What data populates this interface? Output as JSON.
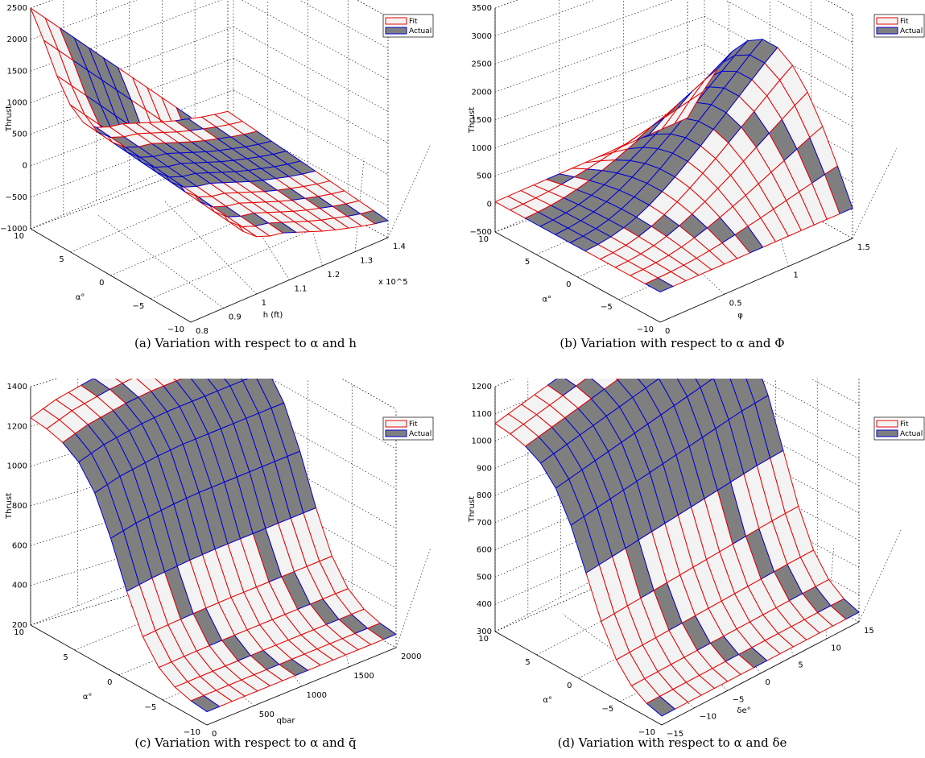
{
  "chart_data": [
    {
      "type": "surface",
      "zlabel": "Thrust",
      "xlabel": "h (ft)",
      "ylabel": "α°",
      "xscale_label": "x 10^5",
      "caption": "(a) Variation with respect to α and h",
      "legend": [
        "Fit",
        "Actual"
      ],
      "legend_position": "top-right",
      "x_ticks": [
        "0.8",
        "0.9",
        "1",
        "1.1",
        "1.2",
        "1.3",
        "1.4"
      ],
      "y_ticks": [
        "10",
        "5",
        "0",
        "−5",
        "−10"
      ],
      "z_ticks": [
        "2500",
        "2000",
        "1500",
        "1000",
        "500",
        "0",
        "−500",
        "−1000"
      ],
      "xlim": [
        0.8,
        1.4
      ],
      "ylim": [
        -10,
        10
      ],
      "zlim": [
        -1000,
        2500
      ],
      "profile": [
        2500,
        1900,
        1250,
        700,
        330,
        160,
        80,
        40,
        -40,
        -120,
        -200,
        -270,
        -330,
        -390,
        -440,
        -480
      ],
      "grid_x": 16,
      "grid_y": 12,
      "colors": {
        "fit": "#e60000",
        "actual": "#0000d0",
        "fit_fill": "#f3f3f3",
        "actual_fill": "#7f7f80"
      }
    },
    {
      "type": "surface",
      "zlabel": "Thrust",
      "xlabel": "φ",
      "ylabel": "α°",
      "caption": "(b) Variation with respect to α and Φ",
      "legend": [
        "Fit",
        "Actual"
      ],
      "legend_position": "top-right",
      "x_ticks": [
        "0",
        "0.5",
        "1",
        "1.5"
      ],
      "y_ticks": [
        "10",
        "5",
        "0",
        "−5",
        "−10"
      ],
      "z_ticks": [
        "3500",
        "3000",
        "2500",
        "2000",
        "1500",
        "1000",
        "500",
        "0",
        "−500"
      ],
      "xlim": [
        0,
        1.5
      ],
      "ylim": [
        -10,
        10
      ],
      "zlim": [
        -500,
        3500
      ],
      "profile": [
        0,
        20,
        60,
        130,
        230,
        360,
        520,
        700,
        900,
        1100,
        1320,
        1540,
        1760,
        1980,
        2200,
        2400
      ],
      "grid_x": 16,
      "grid_y": 12,
      "colors": {
        "fit": "#e60000",
        "actual": "#0000d0",
        "fit_fill": "#f3f3f3",
        "actual_fill": "#7f7f80"
      }
    },
    {
      "type": "surface",
      "zlabel": "Thrust",
      "xlabel": "qbar",
      "ylabel": "α°",
      "caption": "(c) Variation with respect to α and q̄",
      "legend": [
        "Fit",
        "Actual"
      ],
      "legend_position": "top-right",
      "x_ticks": [
        "0",
        "500",
        "1000",
        "1500",
        "2000"
      ],
      "y_ticks": [
        "10",
        "5",
        "0",
        "−5",
        "−10"
      ],
      "z_ticks": [
        "1400",
        "1200",
        "1000",
        "800",
        "600",
        "400",
        "200"
      ],
      "xlim": [
        0,
        2000
      ],
      "ylim": [
        -10,
        10
      ],
      "zlim": [
        200,
        1400
      ],
      "profile": [
        1250,
        1270,
        1290,
        1300,
        1310,
        1320,
        1325,
        1330,
        1330,
        1330,
        1330,
        1330,
        1330,
        1330,
        1330,
        1330
      ],
      "grid_x": 16,
      "grid_y": 12,
      "colors": {
        "fit": "#e60000",
        "actual": "#0000d0",
        "fit_fill": "#f3f3f3",
        "actual_fill": "#7f7f80"
      }
    },
    {
      "type": "surface",
      "zlabel": "Thrust",
      "xlabel": "δe°",
      "ylabel": "α°",
      "caption": "(d) Variation with respect to α and δe",
      "legend": [
        "Fit",
        "Actual"
      ],
      "legend_position": "top-right",
      "x_ticks": [
        "−15",
        "−10",
        "−5",
        "0",
        "5",
        "10",
        "15"
      ],
      "y_ticks": [
        "10",
        "5",
        "0",
        "−5",
        "−10"
      ],
      "z_ticks": [
        "1200",
        "1100",
        "1000",
        "900",
        "800",
        "700",
        "600",
        "500",
        "400",
        "300"
      ],
      "xlim": [
        -15,
        15
      ],
      "ylim": [
        -10,
        10
      ],
      "zlim": [
        300,
        1200
      ],
      "profile": [
        1070,
        1080,
        1090,
        1100,
        1110,
        1120,
        1130,
        1140,
        1150,
        1160,
        1170,
        1180,
        1190,
        1200,
        1205,
        1210
      ],
      "grid_x": 16,
      "grid_y": 12,
      "colors": {
        "fit": "#e60000",
        "actual": "#0000d0",
        "fit_fill": "#f3f3f3",
        "actual_fill": "#7f7f80"
      }
    }
  ]
}
